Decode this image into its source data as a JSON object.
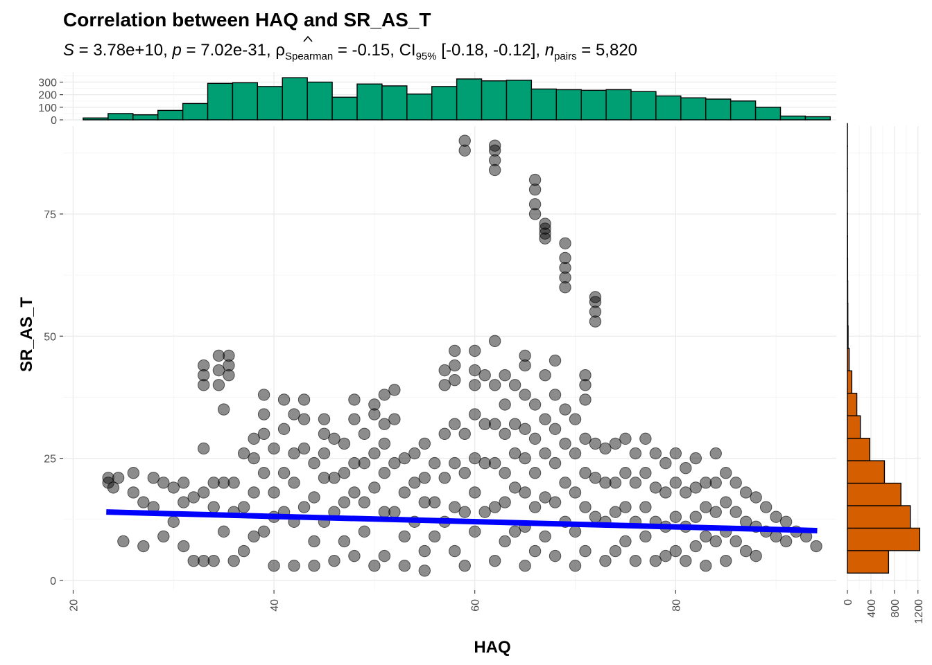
{
  "chart_data": {
    "type": "scatter",
    "title": "Correlation between HAQ and SR_AS_T",
    "subtitle": {
      "S": "3.78e+10",
      "p": "7.02e-31",
      "rho_label": "ρ",
      "rho_sub": "Spearman",
      "rho": "-0.15",
      "ci_label": "CI",
      "ci_sub": "95%",
      "ci": "[-0.18, -0.12]",
      "n_label": "n",
      "n_sub": "pairs",
      "n": "5,820"
    },
    "xlabel": "HAQ",
    "ylabel": "SR_AS_T",
    "xlim": [
      19,
      96
    ],
    "ylim": [
      -2,
      93
    ],
    "x_ticks": [
      20,
      40,
      60,
      80
    ],
    "y_ticks": [
      0,
      25,
      50,
      75
    ],
    "grid": true,
    "point_color": "#000000",
    "regression": {
      "color": "#0000FF",
      "x": [
        23.3,
        94.1
      ],
      "y": [
        14.0,
        10.2
      ]
    },
    "marginal_x": {
      "type": "histogram",
      "color": "#009E73",
      "yticks": [
        0,
        100,
        200,
        300
      ],
      "bins_start": 21,
      "bin_width": 2.48,
      "counts": [
        15,
        50,
        40,
        75,
        130,
        290,
        295,
        265,
        335,
        300,
        180,
        285,
        270,
        205,
        265,
        325,
        310,
        315,
        245,
        240,
        235,
        240,
        225,
        190,
        175,
        165,
        150,
        100,
        30,
        25
      ]
    },
    "marginal_y": {
      "type": "histogram",
      "color": "#D55E00",
      "xticks": [
        0,
        400,
        800,
        1200
      ],
      "bins_start": 1.5,
      "bin_width": 4.6,
      "counts": [
        700,
        1230,
        1070,
        910,
        630,
        380,
        220,
        160,
        75,
        30,
        12,
        8,
        6,
        4,
        3,
        2,
        1,
        1,
        1,
        1
      ]
    },
    "points": [
      [
        23.5,
        21
      ],
      [
        23.5,
        20
      ],
      [
        24,
        19
      ],
      [
        24.5,
        21
      ],
      [
        25,
        8
      ],
      [
        26,
        22
      ],
      [
        26,
        18
      ],
      [
        27,
        16
      ],
      [
        27,
        7
      ],
      [
        28,
        21
      ],
      [
        28,
        15
      ],
      [
        29,
        20
      ],
      [
        29,
        9
      ],
      [
        30,
        19
      ],
      [
        30,
        12
      ],
      [
        31,
        20
      ],
      [
        31,
        16
      ],
      [
        31,
        7
      ],
      [
        32,
        17
      ],
      [
        32,
        4
      ],
      [
        33,
        44
      ],
      [
        33,
        42
      ],
      [
        33,
        40
      ],
      [
        33,
        27
      ],
      [
        33,
        18
      ],
      [
        33,
        4
      ],
      [
        34,
        20
      ],
      [
        34,
        15
      ],
      [
        34,
        4
      ],
      [
        34.5,
        46
      ],
      [
        34.5,
        43
      ],
      [
        34.5,
        40
      ],
      [
        35,
        35
      ],
      [
        35,
        20
      ],
      [
        35,
        10
      ],
      [
        35.5,
        46
      ],
      [
        35.5,
        44
      ],
      [
        35.5,
        42
      ],
      [
        36,
        20
      ],
      [
        36,
        14
      ],
      [
        36,
        4
      ],
      [
        37,
        26
      ],
      [
        37,
        15
      ],
      [
        37,
        6
      ],
      [
        38,
        29
      ],
      [
        38,
        25
      ],
      [
        38,
        18
      ],
      [
        38,
        9
      ],
      [
        39,
        38
      ],
      [
        39,
        34
      ],
      [
        39,
        30
      ],
      [
        39,
        22
      ],
      [
        39,
        10
      ],
      [
        40,
        27
      ],
      [
        40,
        18
      ],
      [
        40,
        13
      ],
      [
        40,
        3
      ],
      [
        41,
        31
      ],
      [
        41,
        37
      ],
      [
        41,
        22
      ],
      [
        41,
        14
      ],
      [
        42,
        34
      ],
      [
        42,
        26
      ],
      [
        42,
        20
      ],
      [
        42,
        12
      ],
      [
        42,
        3
      ],
      [
        43,
        33
      ],
      [
        43,
        37
      ],
      [
        43,
        27
      ],
      [
        43,
        15
      ],
      [
        44,
        24
      ],
      [
        44,
        17
      ],
      [
        44,
        8
      ],
      [
        44,
        3
      ],
      [
        45,
        33
      ],
      [
        45,
        30
      ],
      [
        45,
        26
      ],
      [
        45,
        21
      ],
      [
        45,
        12
      ],
      [
        46,
        29
      ],
      [
        46,
        21
      ],
      [
        46,
        14
      ],
      [
        46,
        4
      ],
      [
        47,
        28
      ],
      [
        47,
        22
      ],
      [
        47,
        16
      ],
      [
        47,
        8
      ],
      [
        48,
        37
      ],
      [
        48,
        33
      ],
      [
        48,
        24
      ],
      [
        48,
        18
      ],
      [
        48,
        5
      ],
      [
        49,
        30
      ],
      [
        49,
        24
      ],
      [
        49,
        16
      ],
      [
        49,
        10
      ],
      [
        50,
        36
      ],
      [
        50,
        34
      ],
      [
        50,
        26
      ],
      [
        50,
        19
      ],
      [
        50,
        3
      ],
      [
        51,
        38
      ],
      [
        51,
        32
      ],
      [
        51,
        28
      ],
      [
        51,
        22
      ],
      [
        51,
        14
      ],
      [
        51,
        5
      ],
      [
        52,
        39
      ],
      [
        52,
        33
      ],
      [
        52,
        24
      ],
      [
        52,
        14
      ],
      [
        53,
        25
      ],
      [
        53,
        18
      ],
      [
        53,
        9
      ],
      [
        53,
        3
      ],
      [
        54,
        26
      ],
      [
        54,
        20
      ],
      [
        54,
        12
      ],
      [
        55,
        28
      ],
      [
        55,
        21
      ],
      [
        55,
        16
      ],
      [
        55,
        6
      ],
      [
        55,
        2
      ],
      [
        56,
        24
      ],
      [
        56,
        16
      ],
      [
        56,
        9
      ],
      [
        57,
        43
      ],
      [
        57,
        40
      ],
      [
        57,
        30
      ],
      [
        57,
        21
      ],
      [
        57,
        12
      ],
      [
        58,
        47
      ],
      [
        58,
        44
      ],
      [
        58,
        41
      ],
      [
        58,
        32
      ],
      [
        58,
        24
      ],
      [
        58,
        15
      ],
      [
        58,
        6
      ],
      [
        59,
        90
      ],
      [
        59,
        88
      ],
      [
        59,
        30
      ],
      [
        59,
        22
      ],
      [
        59,
        14
      ],
      [
        59,
        3
      ],
      [
        60,
        47
      ],
      [
        60,
        43
      ],
      [
        60,
        40
      ],
      [
        60,
        34
      ],
      [
        60,
        25
      ],
      [
        60,
        18
      ],
      [
        60,
        10
      ],
      [
        61,
        42
      ],
      [
        61,
        32
      ],
      [
        61,
        24
      ],
      [
        61,
        14
      ],
      [
        62,
        89
      ],
      [
        62,
        88
      ],
      [
        62,
        86
      ],
      [
        62,
        84
      ],
      [
        62,
        49
      ],
      [
        62,
        40
      ],
      [
        62,
        32
      ],
      [
        62,
        24
      ],
      [
        62,
        15
      ],
      [
        62,
        4
      ],
      [
        63,
        42
      ],
      [
        63,
        36
      ],
      [
        63,
        30
      ],
      [
        63,
        22
      ],
      [
        63,
        16
      ],
      [
        63,
        8
      ],
      [
        64,
        40
      ],
      [
        64,
        32
      ],
      [
        64,
        26
      ],
      [
        64,
        19
      ],
      [
        64,
        10
      ],
      [
        65,
        46
      ],
      [
        65,
        44
      ],
      [
        65,
        38
      ],
      [
        65,
        31
      ],
      [
        65,
        25
      ],
      [
        65,
        18
      ],
      [
        65,
        11
      ],
      [
        65,
        3
      ],
      [
        66,
        82
      ],
      [
        66,
        80
      ],
      [
        66,
        77
      ],
      [
        66,
        75
      ],
      [
        66,
        36
      ],
      [
        66,
        29
      ],
      [
        66,
        22
      ],
      [
        66,
        15
      ],
      [
        66,
        6
      ],
      [
        67,
        73
      ],
      [
        67,
        72
      ],
      [
        67,
        71
      ],
      [
        67,
        70
      ],
      [
        67,
        42
      ],
      [
        67,
        33
      ],
      [
        67,
        26
      ],
      [
        67,
        17
      ],
      [
        67,
        9
      ],
      [
        68,
        45
      ],
      [
        68,
        38
      ],
      [
        68,
        31
      ],
      [
        68,
        24
      ],
      [
        68,
        16
      ],
      [
        68,
        5
      ],
      [
        69,
        69
      ],
      [
        69,
        66
      ],
      [
        69,
        64
      ],
      [
        69,
        62
      ],
      [
        69,
        60
      ],
      [
        69,
        35
      ],
      [
        69,
        28
      ],
      [
        69,
        20
      ],
      [
        69,
        12
      ],
      [
        70,
        33
      ],
      [
        70,
        26
      ],
      [
        70,
        18
      ],
      [
        70,
        10
      ],
      [
        70,
        3
      ],
      [
        71,
        42
      ],
      [
        71,
        40
      ],
      [
        71,
        37
      ],
      [
        71,
        29
      ],
      [
        71,
        22
      ],
      [
        71,
        15
      ],
      [
        71,
        6
      ],
      [
        72,
        58
      ],
      [
        72,
        57
      ],
      [
        72,
        55
      ],
      [
        72,
        53
      ],
      [
        72,
        28
      ],
      [
        72,
        21
      ],
      [
        72,
        13
      ],
      [
        73,
        27
      ],
      [
        73,
        20
      ],
      [
        73,
        12
      ],
      [
        73,
        4
      ],
      [
        74,
        28
      ],
      [
        74,
        20
      ],
      [
        74,
        14
      ],
      [
        74,
        6
      ],
      [
        75,
        29
      ],
      [
        75,
        22
      ],
      [
        75,
        15
      ],
      [
        75,
        8
      ],
      [
        76,
        26
      ],
      [
        76,
        20
      ],
      [
        76,
        12
      ],
      [
        76,
        4
      ],
      [
        77,
        29
      ],
      [
        77,
        22
      ],
      [
        77,
        15
      ],
      [
        77,
        9
      ],
      [
        78,
        26
      ],
      [
        78,
        19
      ],
      [
        78,
        12
      ],
      [
        78,
        4
      ],
      [
        79,
        24
      ],
      [
        79,
        18
      ],
      [
        79,
        11
      ],
      [
        79,
        5
      ],
      [
        80,
        26
      ],
      [
        80,
        20
      ],
      [
        80,
        13
      ],
      [
        80,
        6
      ],
      [
        81,
        23
      ],
      [
        81,
        18
      ],
      [
        81,
        11
      ],
      [
        81,
        4
      ],
      [
        82,
        25
      ],
      [
        82,
        19
      ],
      [
        82,
        13
      ],
      [
        82,
        7
      ],
      [
        83,
        20
      ],
      [
        83,
        15
      ],
      [
        83,
        9
      ],
      [
        83,
        3
      ],
      [
        84,
        26
      ],
      [
        84,
        20
      ],
      [
        84,
        14
      ],
      [
        84,
        8
      ],
      [
        85,
        22
      ],
      [
        85,
        16
      ],
      [
        85,
        10
      ],
      [
        85,
        4
      ],
      [
        86,
        20
      ],
      [
        86,
        14
      ],
      [
        86,
        8
      ],
      [
        87,
        18
      ],
      [
        87,
        12
      ],
      [
        87,
        6
      ],
      [
        88,
        17
      ],
      [
        88,
        11
      ],
      [
        88,
        5
      ],
      [
        89,
        15
      ],
      [
        89,
        10
      ],
      [
        90,
        13
      ],
      [
        90,
        9
      ],
      [
        91,
        12
      ],
      [
        91,
        8
      ],
      [
        92,
        10
      ],
      [
        93,
        9
      ],
      [
        94,
        7
      ]
    ]
  }
}
